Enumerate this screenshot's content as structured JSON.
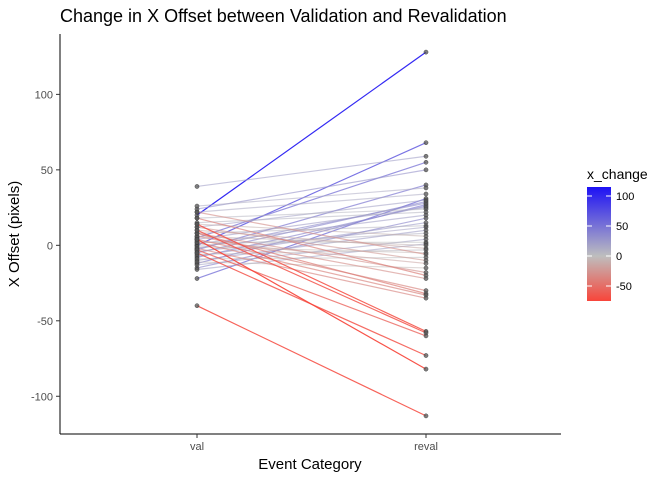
{
  "chart_data": {
    "type": "line",
    "title": "Change in X Offset between Validation and Revalidation",
    "xlabel": "Event Category",
    "ylabel": "X Offset (pixels)",
    "categories": [
      "val",
      "reval"
    ],
    "ylim": [
      -125,
      140
    ],
    "yticks": [
      -100,
      -50,
      0,
      50,
      100
    ],
    "grid": false,
    "legend": {
      "title": "x_change",
      "position": "right",
      "scale": "gradient",
      "min": -75,
      "max": 115,
      "ticks": [
        -50,
        0,
        50,
        100
      ],
      "colors": {
        "low": "#f8453a",
        "mid": "#bebebe",
        "high": "#1d11f5"
      }
    },
    "pairs": [
      [
        20,
        128
      ],
      [
        0,
        68
      ],
      [
        39,
        59
      ],
      [
        5,
        55
      ],
      [
        24,
        50
      ],
      [
        -3,
        40
      ],
      [
        26,
        38
      ],
      [
        22,
        34
      ],
      [
        -22,
        31
      ],
      [
        12,
        30
      ],
      [
        -5,
        29
      ],
      [
        -2,
        28
      ],
      [
        -12,
        27
      ],
      [
        -8,
        26
      ],
      [
        4,
        25
      ],
      [
        18,
        24
      ],
      [
        15,
        22
      ],
      [
        1,
        20
      ],
      [
        -15,
        18
      ],
      [
        -7,
        15
      ],
      [
        8,
        13
      ],
      [
        -4,
        12
      ],
      [
        -10,
        10
      ],
      [
        0,
        8
      ],
      [
        14,
        6
      ],
      [
        -13,
        4
      ],
      [
        2,
        2
      ],
      [
        -16,
        1
      ],
      [
        6,
        0
      ],
      [
        10,
        -2
      ],
      [
        -6,
        -3
      ],
      [
        -1,
        -5
      ],
      [
        22,
        -6
      ],
      [
        -9,
        -8
      ],
      [
        12,
        -10
      ],
      [
        3,
        -12
      ],
      [
        -11,
        -15
      ],
      [
        8,
        -18
      ],
      [
        18,
        -20
      ],
      [
        6,
        -22
      ],
      [
        4,
        -30
      ],
      [
        8,
        -32
      ],
      [
        2,
        -33
      ],
      [
        -2,
        -35
      ],
      [
        14,
        -57
      ],
      [
        -3,
        -60
      ],
      [
        -5,
        -73
      ],
      [
        4,
        -82
      ],
      [
        -40,
        -113
      ],
      [
        10,
        -58
      ]
    ]
  }
}
